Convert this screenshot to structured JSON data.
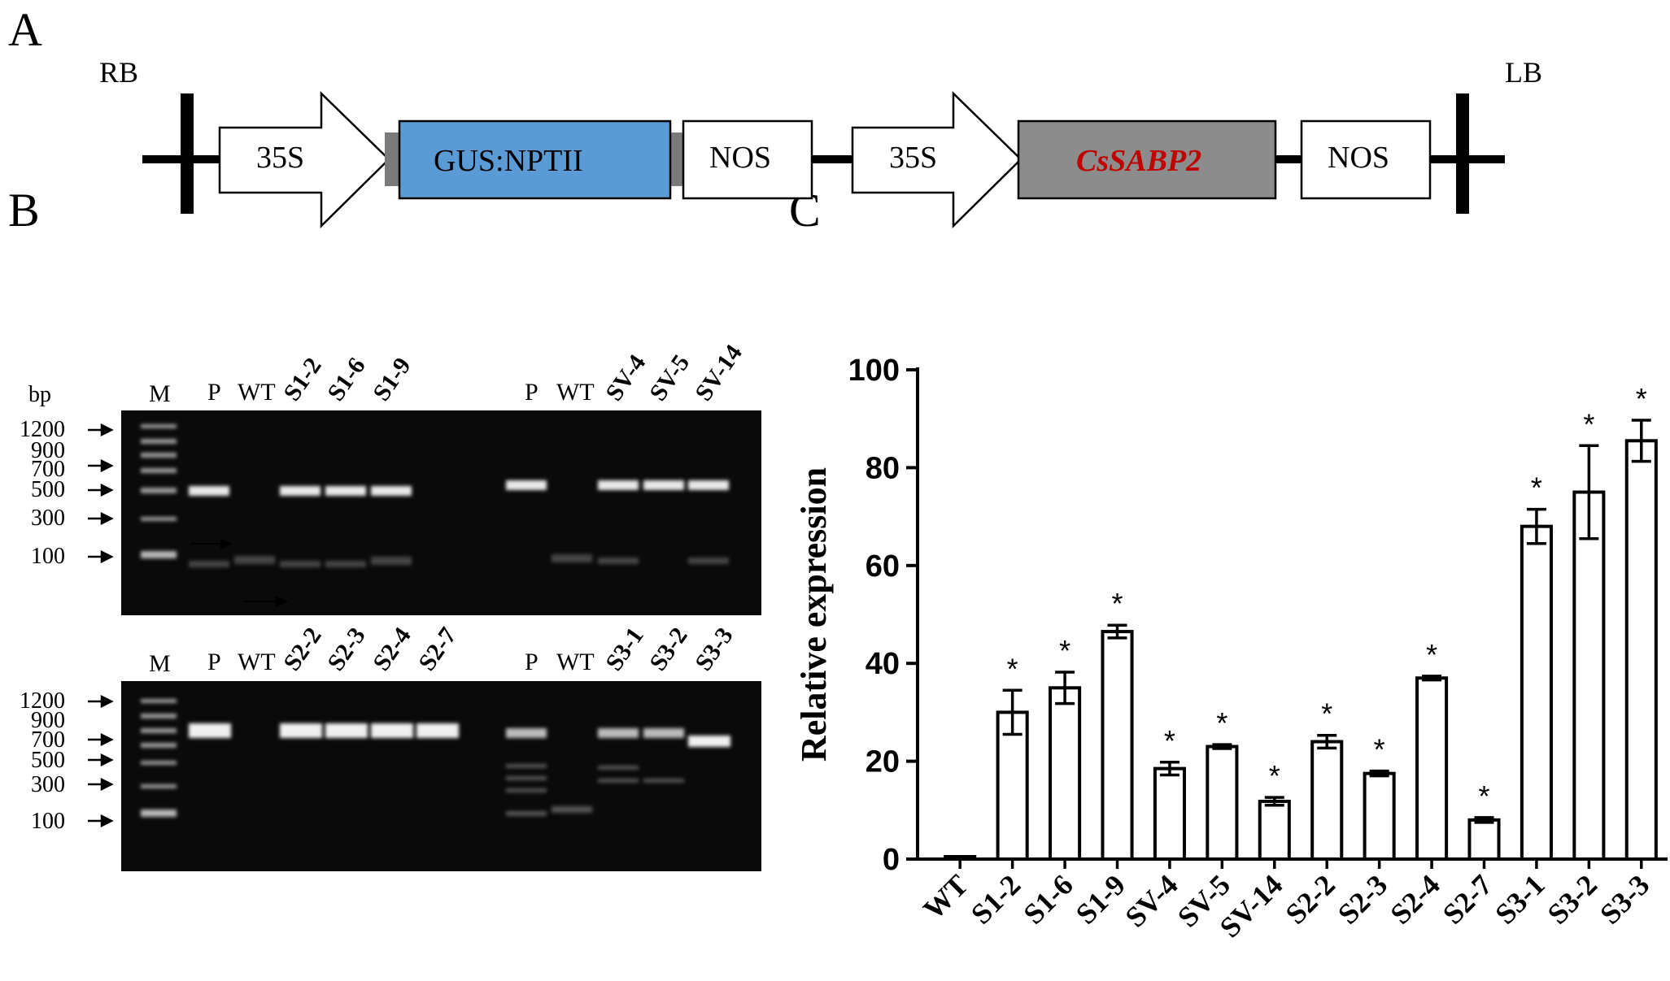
{
  "panels": {
    "a": "A",
    "b": "B",
    "c": "C"
  },
  "construct": {
    "rb": "RB",
    "lb": "LB",
    "p35s_1": "35S",
    "gus": "GUS:NPTII",
    "nos_1": "NOS",
    "p35s_2": "35S",
    "gene": "CsSABP2",
    "nos_2": "NOS",
    "colors": {
      "gus_box": "#5b9bd5",
      "gene_box": "#8c8c8c",
      "gene_text": "#c00000"
    }
  },
  "gel": {
    "bp_label": "bp",
    "top": {
      "sizes": [
        "1200",
        "900",
        "700",
        "500",
        "300",
        "100"
      ],
      "lanes_left": [
        "M",
        "P",
        "WT",
        "S1-2",
        "S1-6",
        "S1-9"
      ],
      "lanes_right": [
        "P",
        "WT",
        "SV-4",
        "SV-5",
        "SV-14"
      ]
    },
    "bottom": {
      "sizes": [
        "1200",
        "900",
        "700",
        "500",
        "300",
        "100"
      ],
      "lanes_left": [
        "M",
        "P",
        "WT",
        "S2-2",
        "S2-3",
        "S2-4",
        "S2-7"
      ],
      "lanes_right": [
        "P",
        "WT",
        "S3-1",
        "S3-2",
        "S3-3"
      ]
    }
  },
  "chart_data": {
    "type": "bar",
    "ylabel": "Relative expression",
    "ylim": [
      0,
      100
    ],
    "yticks": [
      "0",
      "20",
      "40",
      "60",
      "80",
      "100"
    ],
    "categories": [
      "WT",
      "S1-2",
      "S1-6",
      "S1-9",
      "SV-4",
      "SV-5",
      "SV-14",
      "S2-2",
      "S2-3",
      "S2-4",
      "S2-7",
      "S3-1",
      "S3-2",
      "S3-3"
    ],
    "values": [
      0.5,
      30,
      35,
      46.5,
      18.5,
      23,
      11.8,
      24,
      17.5,
      37,
      8,
      68,
      75,
      85.5
    ],
    "errors": [
      0,
      4.5,
      3.2,
      1.3,
      1.3,
      0.4,
      0.8,
      1.3,
      0.5,
      0.4,
      0.5,
      3.5,
      9.5,
      4.2
    ],
    "significance": [
      "",
      "*",
      "*",
      "*",
      "*",
      "*",
      "*",
      "*",
      "*",
      "*",
      "*",
      "*",
      "*",
      "*"
    ],
    "grid": false,
    "bar_color": "#ffffff"
  }
}
